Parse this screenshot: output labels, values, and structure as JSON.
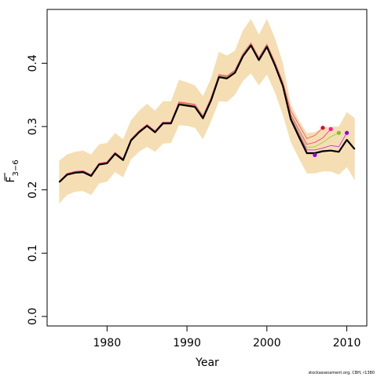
{
  "chart_data": {
    "type": "line",
    "xlabel": "Year",
    "ylabel": "F",
    "ylabel_subscript": "3−6",
    "xlim": [
      1972.5,
      2012.5
    ],
    "ylim": [
      -0.015,
      0.485
    ],
    "xticks": [
      1980,
      1990,
      2000,
      2010
    ],
    "xtick_labels": [
      "1980",
      "1990",
      "2000",
      "2010"
    ],
    "yticks": [
      0.0,
      0.1,
      0.2,
      0.3,
      0.4
    ],
    "ytick_labels": [
      "0.0",
      "0.1",
      "0.2",
      "0.3",
      "0.4"
    ],
    "grid": false,
    "x": [
      1974,
      1975,
      1976,
      1977,
      1978,
      1979,
      1980,
      1981,
      1982,
      1983,
      1984,
      1985,
      1986,
      1987,
      1988,
      1989,
      1990,
      1991,
      1992,
      1993,
      1994,
      1995,
      1996,
      1997,
      1998,
      1999,
      2000,
      2001,
      2002,
      2003,
      2004,
      2005,
      2006,
      2007,
      2008,
      2009,
      2010,
      2011
    ],
    "band": {
      "color": "#f5deb3",
      "upper": [
        0.246,
        0.256,
        0.26,
        0.262,
        0.256,
        0.272,
        0.274,
        0.29,
        0.28,
        0.31,
        0.325,
        0.336,
        0.325,
        0.34,
        0.34,
        0.374,
        0.37,
        0.365,
        0.348,
        0.376,
        0.418,
        0.412,
        0.42,
        0.452,
        0.47,
        0.445,
        0.47,
        0.44,
        0.4,
        0.335,
        0.31,
        0.29,
        0.291,
        0.298,
        0.3,
        0.3,
        0.323,
        0.313
      ],
      "lower": [
        0.178,
        0.192,
        0.197,
        0.198,
        0.192,
        0.21,
        0.213,
        0.228,
        0.22,
        0.248,
        0.26,
        0.268,
        0.26,
        0.273,
        0.274,
        0.302,
        0.301,
        0.298,
        0.28,
        0.308,
        0.34,
        0.339,
        0.35,
        0.372,
        0.384,
        0.365,
        0.382,
        0.354,
        0.318,
        0.275,
        0.25,
        0.226,
        0.226,
        0.229,
        0.229,
        0.224,
        0.236,
        0.215
      ]
    },
    "series": [
      {
        "color": "#ff6666",
        "width": 1,
        "values": [
          0.213,
          0.226,
          0.229,
          0.23,
          0.224,
          0.242,
          0.244,
          0.259,
          0.249,
          0.28,
          0.293,
          0.303,
          0.293,
          0.307,
          0.307,
          0.339,
          0.337,
          0.335,
          0.317,
          0.345,
          0.382,
          0.38,
          0.389,
          0.415,
          0.432,
          0.409,
          0.43,
          0.402,
          0.37,
          0.325,
          0.303,
          0.281,
          0.286,
          0.298,
          null,
          null,
          null,
          null
        ],
        "endpoint": 0.298,
        "endpoint_color": "#e0002a"
      },
      {
        "color": "#ff4488",
        "width": 1,
        "values": [
          0.213,
          0.226,
          0.229,
          0.23,
          0.224,
          0.242,
          0.244,
          0.259,
          0.249,
          0.28,
          0.293,
          0.303,
          0.293,
          0.307,
          0.307,
          0.338,
          0.336,
          0.334,
          0.316,
          0.344,
          0.381,
          0.379,
          0.388,
          0.414,
          0.431,
          0.408,
          0.429,
          0.4,
          0.367,
          0.319,
          0.295,
          0.272,
          0.275,
          0.282,
          0.296,
          null,
          null,
          null
        ],
        "endpoint": 0.296,
        "endpoint_color": "#ff1493"
      },
      {
        "color": "#a8d040",
        "width": 1,
        "values": [
          0.213,
          0.225,
          0.228,
          0.229,
          0.223,
          0.241,
          0.243,
          0.258,
          0.248,
          0.279,
          0.292,
          0.302,
          0.292,
          0.306,
          0.306,
          0.337,
          0.335,
          0.333,
          0.315,
          0.343,
          0.38,
          0.378,
          0.387,
          0.413,
          0.43,
          0.407,
          0.428,
          0.399,
          0.366,
          0.316,
          0.291,
          0.267,
          0.268,
          0.275,
          0.284,
          0.29,
          null,
          null
        ],
        "endpoint": 0.29,
        "endpoint_color": "#7ac520"
      },
      {
        "color": "#cc44cc",
        "width": 1,
        "values": [
          0.213,
          0.225,
          0.228,
          0.229,
          0.223,
          0.241,
          0.243,
          0.258,
          0.248,
          0.279,
          0.292,
          0.302,
          0.292,
          0.306,
          0.306,
          0.336,
          0.334,
          0.332,
          0.314,
          0.342,
          0.379,
          0.377,
          0.386,
          0.412,
          0.429,
          0.406,
          0.427,
          0.398,
          0.365,
          0.314,
          0.288,
          0.263,
          0.263,
          0.266,
          0.27,
          0.268,
          0.29,
          null
        ],
        "endpoint": 0.29,
        "endpoint_color": "#9400d3"
      },
      {
        "color": "#000000",
        "width": 2.2,
        "values": [
          0.212,
          0.224,
          0.227,
          0.228,
          0.222,
          0.24,
          0.242,
          0.257,
          0.247,
          0.278,
          0.291,
          0.301,
          0.291,
          0.305,
          0.305,
          0.335,
          0.333,
          0.331,
          0.313,
          0.341,
          0.378,
          0.376,
          0.385,
          0.411,
          0.428,
          0.405,
          0.426,
          0.397,
          0.364,
          0.311,
          0.284,
          0.258,
          0.258,
          0.261,
          0.262,
          0.26,
          0.279,
          0.264
        ],
        "endpoint": null,
        "endpoint_color": null
      }
    ],
    "extra_point": {
      "x": 2006,
      "y": 0.255,
      "color": "#9400d3"
    }
  },
  "credit": "stockassessment.org, CBH, r1380"
}
